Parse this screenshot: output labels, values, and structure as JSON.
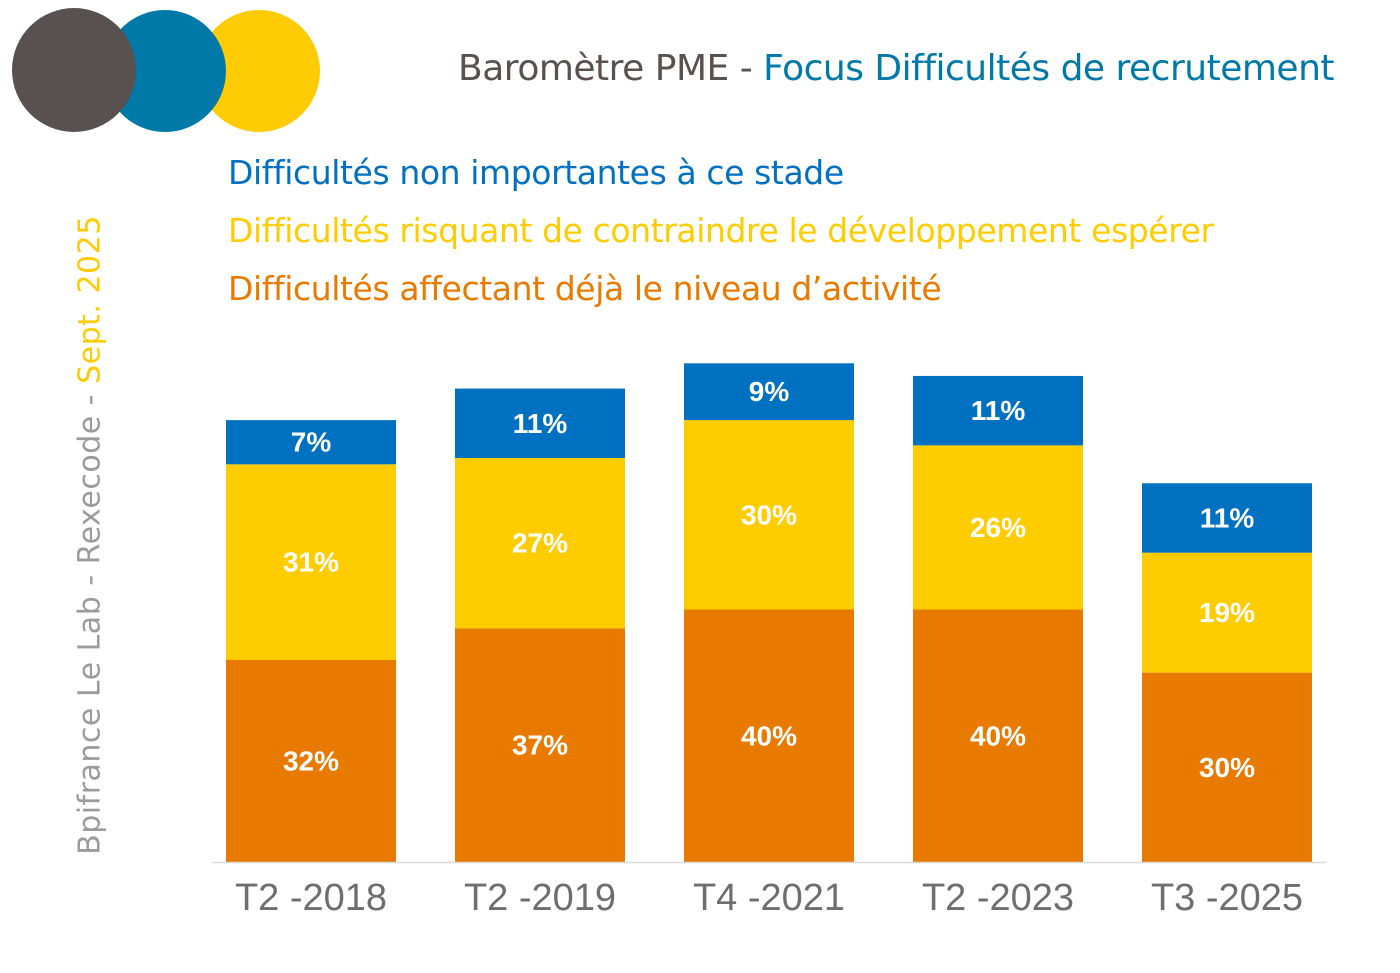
{
  "header": {
    "title_part1": "Baromètre PME - ",
    "title_part2": "Focus Difficultés de recrutement"
  },
  "sidebar_text": {
    "source": "Bpifrance Le Lab - Rexecode - ",
    "date": "Sept. 2025"
  },
  "colors": {
    "grey": "#595150",
    "blue_brand": "#0078A8",
    "yellow": "#FFCB05",
    "series_blue": "#0070C0",
    "series_yellow": "#FFCC00",
    "series_orange": "#E87A00"
  },
  "chart_data": {
    "type": "bar",
    "stacked": true,
    "categories": [
      "T2 -2018",
      "T2 -2019",
      "T4 -2021",
      "T2 -2023",
      "T3 -2025"
    ],
    "series": [
      {
        "name": "Difficultés affectant déjà le niveau d’activité",
        "color": "#E87A00",
        "values": [
          32,
          37,
          40,
          40,
          30
        ]
      },
      {
        "name": "Difficultés risquant de contraindre le développement espérer",
        "color": "#FFCC00",
        "values": [
          31,
          27,
          30,
          26,
          19
        ]
      },
      {
        "name": "Difficultés non importantes à ce stade",
        "color": "#0070C0",
        "values": [
          7,
          11,
          9,
          11,
          11
        ]
      }
    ],
    "legend_order": [
      2,
      1,
      0
    ],
    "value_suffix": "%",
    "ylim": [
      0,
      80
    ],
    "grid": false
  }
}
